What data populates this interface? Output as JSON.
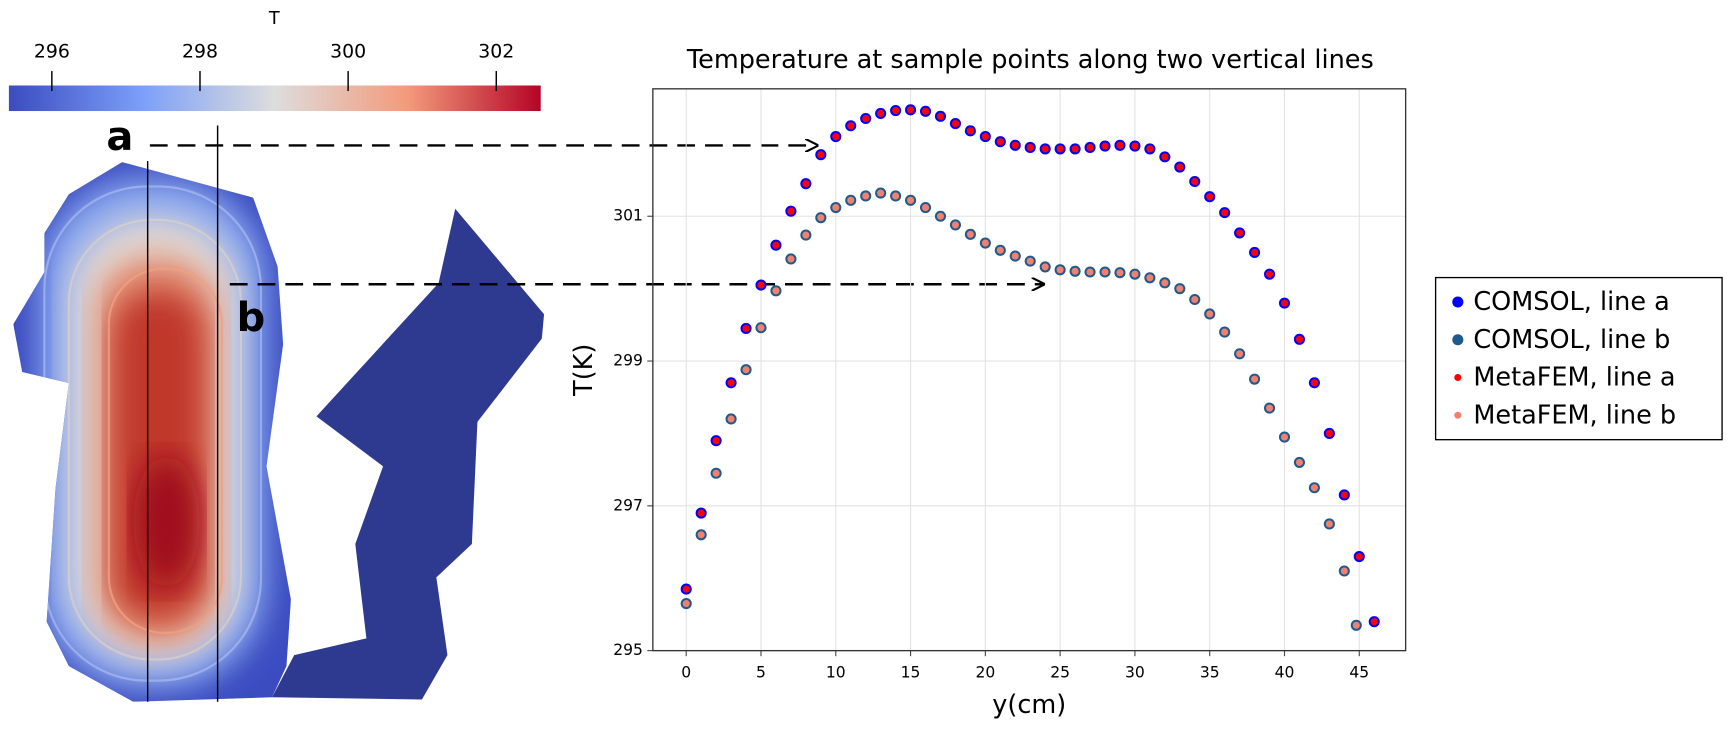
{
  "colorbar": {
    "label": "T",
    "range": [
      295.42,
      302.6
    ],
    "ticks": [
      296,
      298,
      300,
      302
    ]
  },
  "annotations": [
    "a",
    "b"
  ],
  "chart_data": {
    "type": "scatter",
    "title": "Temperature at sample points along two vertical lines",
    "x_label": "y(cm)",
    "y_label": "T(K)",
    "xlim": [
      -2.23,
      48.1
    ],
    "ylim": [
      295,
      302.76
    ],
    "xticks": [
      0,
      5,
      10,
      15,
      20,
      25,
      30,
      35,
      40,
      45
    ],
    "yticks": [
      295,
      297,
      299,
      301
    ],
    "grid": true,
    "legend": "right",
    "series": [
      {
        "name": "COMSOL, line a",
        "color": "#0000ff",
        "marker_size": 5,
        "x": [
          0,
          1,
          2,
          3,
          4,
          5,
          6,
          7,
          8,
          9,
          10,
          11,
          12,
          13,
          14,
          15,
          16,
          17,
          18,
          19,
          20,
          21,
          22,
          23,
          24,
          25,
          26,
          27,
          28,
          29,
          30,
          31,
          32,
          33,
          34,
          35,
          36,
          37,
          38,
          39,
          40,
          41,
          42,
          43,
          44,
          45,
          46
        ],
        "values": [
          295.85,
          296.9,
          297.9,
          298.7,
          299.45,
          300.05,
          300.6,
          301.07,
          301.45,
          301.85,
          302.1,
          302.25,
          302.35,
          302.42,
          302.46,
          302.47,
          302.45,
          302.38,
          302.28,
          302.18,
          302.1,
          302.03,
          301.98,
          301.95,
          301.93,
          301.93,
          301.93,
          301.95,
          301.97,
          301.98,
          301.97,
          301.93,
          301.82,
          301.68,
          301.48,
          301.27,
          301.05,
          300.77,
          300.5,
          300.2,
          299.8,
          299.3,
          298.7,
          298.0,
          297.15,
          296.3,
          295.4
        ]
      },
      {
        "name": "COMSOL, line b",
        "color": "#1f5a8c",
        "marker_size": 5,
        "x": [
          0,
          1,
          2,
          3,
          4,
          5,
          6,
          7,
          8,
          9,
          10,
          11,
          12,
          13,
          14,
          15,
          16,
          17,
          18,
          19,
          20,
          21,
          22,
          23,
          24,
          25,
          26,
          27,
          28,
          29,
          30,
          31,
          32,
          33,
          34,
          35,
          36,
          37,
          38,
          39,
          40,
          41,
          42,
          43,
          44,
          44.8
        ],
        "values": [
          295.65,
          296.6,
          297.45,
          298.2,
          298.88,
          299.46,
          299.97,
          300.41,
          300.74,
          300.98,
          301.12,
          301.22,
          301.28,
          301.32,
          301.28,
          301.22,
          301.12,
          301.0,
          300.88,
          300.75,
          300.63,
          300.53,
          300.45,
          300.38,
          300.3,
          300.26,
          300.24,
          300.23,
          300.23,
          300.22,
          300.2,
          300.15,
          300.08,
          300.0,
          299.85,
          299.65,
          299.4,
          299.1,
          298.75,
          298.35,
          297.95,
          297.6,
          297.25,
          296.75,
          296.1,
          295.35
        ]
      },
      {
        "name": "MetaFEM, line a",
        "color": "#ff0000",
        "marker_size": 3.2,
        "x": [
          0,
          1,
          2,
          3,
          4,
          5,
          6,
          7,
          8,
          9,
          10,
          11,
          12,
          13,
          14,
          15,
          16,
          17,
          18,
          19,
          20,
          21,
          22,
          23,
          24,
          25,
          26,
          27,
          28,
          29,
          30,
          31,
          32,
          33,
          34,
          35,
          36,
          37,
          38,
          39,
          40,
          41,
          42,
          43,
          44,
          45,
          46
        ],
        "values": [
          295.85,
          296.9,
          297.9,
          298.7,
          299.45,
          300.05,
          300.6,
          301.07,
          301.45,
          301.85,
          302.1,
          302.25,
          302.35,
          302.42,
          302.46,
          302.47,
          302.45,
          302.38,
          302.28,
          302.18,
          302.1,
          302.03,
          301.98,
          301.95,
          301.93,
          301.93,
          301.93,
          301.95,
          301.97,
          301.98,
          301.97,
          301.93,
          301.82,
          301.68,
          301.48,
          301.27,
          301.05,
          300.77,
          300.5,
          300.2,
          299.8,
          299.3,
          298.7,
          298.0,
          297.15,
          296.3,
          295.4
        ]
      },
      {
        "name": "MetaFEM, line b",
        "color": "#f08070",
        "marker_size": 3.2,
        "x": [
          0,
          1,
          2,
          3,
          4,
          5,
          6,
          7,
          8,
          9,
          10,
          11,
          12,
          13,
          14,
          15,
          16,
          17,
          18,
          19,
          20,
          21,
          22,
          23,
          24,
          25,
          26,
          27,
          28,
          29,
          30,
          31,
          32,
          33,
          34,
          35,
          36,
          37,
          38,
          39,
          40,
          41,
          42,
          43,
          44,
          44.8
        ],
        "values": [
          295.65,
          296.6,
          297.45,
          298.2,
          298.88,
          299.46,
          299.97,
          300.41,
          300.74,
          300.98,
          301.12,
          301.22,
          301.28,
          301.32,
          301.28,
          301.22,
          301.12,
          301.0,
          300.88,
          300.75,
          300.63,
          300.53,
          300.45,
          300.38,
          300.3,
          300.26,
          300.24,
          300.23,
          300.23,
          300.22,
          300.2,
          300.15,
          300.08,
          300.0,
          299.85,
          299.65,
          299.4,
          299.1,
          298.75,
          298.35,
          297.95,
          297.6,
          297.25,
          296.75,
          296.1,
          295.35
        ]
      }
    ]
  }
}
